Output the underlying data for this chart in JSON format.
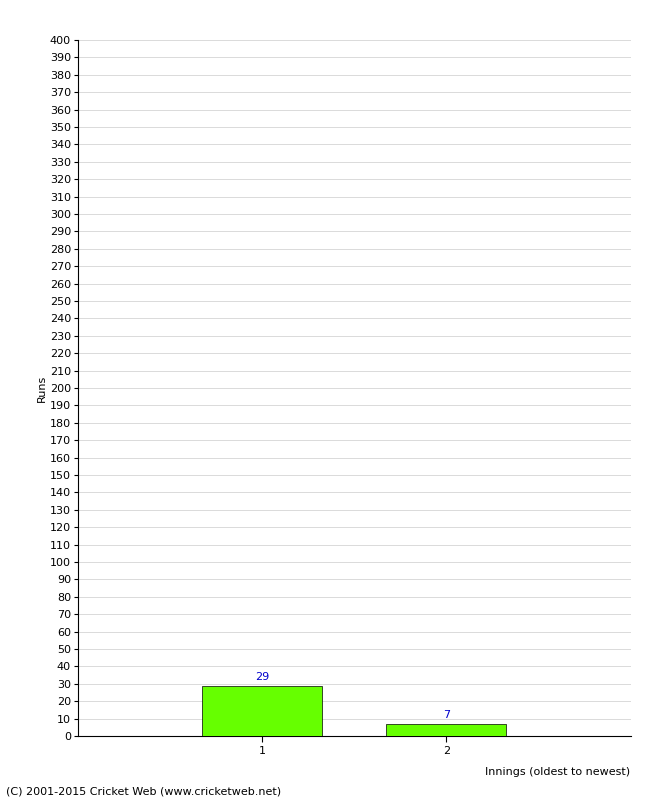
{
  "categories": [
    "1",
    "2"
  ],
  "values": [
    29,
    7
  ],
  "bar_color": "#66ff00",
  "bar_edge_color": "#000000",
  "xlabel": "Innings (oldest to newest)",
  "ylabel": "Runs",
  "ylim": [
    0,
    400
  ],
  "yticks": [
    0,
    10,
    20,
    30,
    40,
    50,
    60,
    70,
    80,
    90,
    100,
    110,
    120,
    130,
    140,
    150,
    160,
    170,
    180,
    190,
    200,
    210,
    220,
    230,
    240,
    250,
    260,
    270,
    280,
    290,
    300,
    310,
    320,
    330,
    340,
    350,
    360,
    370,
    380,
    390,
    400
  ],
  "grid_color": "#cccccc",
  "background_color": "#ffffff",
  "label_color": "#0000cc",
  "footer_text": "(C) 2001-2015 Cricket Web (www.cricketweb.net)",
  "bar_width": 0.65,
  "num_bars": 2,
  "xlim_left": 0,
  "xlim_right": 3
}
